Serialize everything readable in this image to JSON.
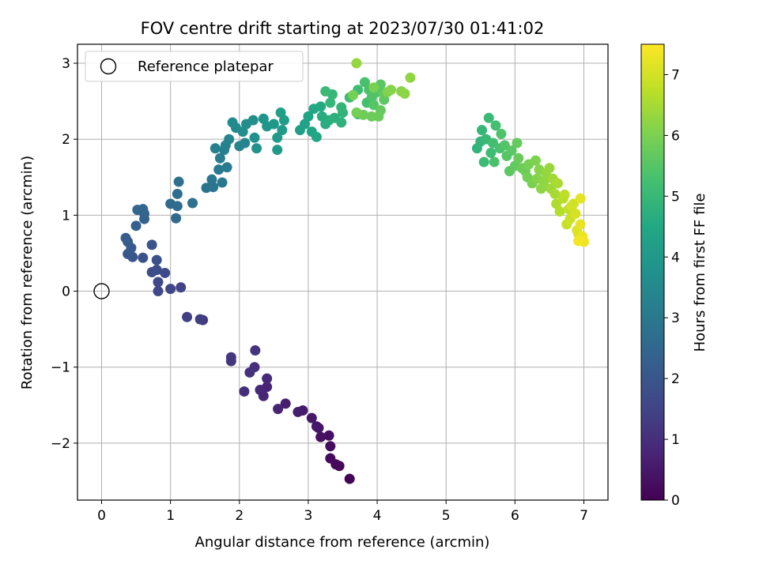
{
  "chart_data": {
    "type": "scatter",
    "title": "FOV centre drift starting at 2023/07/30 01:41:02",
    "xlabel": "Angular distance from reference (arcmin)",
    "ylabel": "Rotation from reference (arcmin)",
    "xlim": [
      -0.35,
      7.35
    ],
    "ylim": [
      -2.75,
      3.25
    ],
    "xticks": [
      0,
      1,
      2,
      3,
      4,
      5,
      6,
      7
    ],
    "yticks": [
      -2,
      -1,
      0,
      1,
      2,
      3
    ],
    "xtick_labels": [
      "0",
      "1",
      "2",
      "3",
      "4",
      "5",
      "6",
      "7"
    ],
    "ytick_labels": [
      "−2",
      "−1",
      "0",
      "1",
      "2",
      "3"
    ],
    "grid": true,
    "legend": {
      "placement": "top-left",
      "entries": [
        "Reference platepar"
      ]
    },
    "reference_point": {
      "x": 0,
      "y": 0,
      "label": "Reference platepar"
    },
    "colorbar": {
      "label": "Hours from first FF file",
      "range": [
        0,
        7.5
      ],
      "ticks": [
        0,
        1,
        2,
        3,
        4,
        5,
        6,
        7
      ],
      "tick_labels": [
        "0",
        "1",
        "2",
        "3",
        "4",
        "5",
        "6",
        "7"
      ],
      "colormap": "viridis"
    },
    "points": [
      [
        3.6,
        -2.47,
        0.05
      ],
      [
        3.45,
        -2.3,
        0.1
      ],
      [
        3.4,
        -2.28,
        0.15
      ],
      [
        3.32,
        -2.2,
        0.2
      ],
      [
        3.32,
        -2.04,
        0.25
      ],
      [
        3.3,
        -1.9,
        0.3
      ],
      [
        3.18,
        -1.92,
        0.35
      ],
      [
        3.15,
        -1.8,
        0.4
      ],
      [
        3.12,
        -1.78,
        0.45
      ],
      [
        3.05,
        -1.67,
        0.5
      ],
      [
        2.92,
        -1.57,
        0.55
      ],
      [
        2.85,
        -1.59,
        0.6
      ],
      [
        2.67,
        -1.48,
        0.65
      ],
      [
        2.56,
        -1.55,
        0.7
      ],
      [
        2.4,
        -1.26,
        0.75
      ],
      [
        2.35,
        -1.38,
        0.8
      ],
      [
        2.3,
        -1.3,
        0.85
      ],
      [
        2.4,
        -1.15,
        0.9
      ],
      [
        2.07,
        -1.32,
        0.95
      ],
      [
        2.22,
        -1.0,
        1.0
      ],
      [
        2.15,
        -1.07,
        1.05
      ],
      [
        2.23,
        -0.78,
        1.1
      ],
      [
        1.88,
        -0.92,
        1.15
      ],
      [
        1.88,
        -0.87,
        1.2
      ],
      [
        1.47,
        -0.38,
        1.3
      ],
      [
        1.43,
        -0.37,
        1.35
      ],
      [
        1.24,
        -0.34,
        1.4
      ],
      [
        1.15,
        0.05,
        1.5
      ],
      [
        1.0,
        0.03,
        1.55
      ],
      [
        0.82,
        0.0,
        1.6
      ],
      [
        0.82,
        0.12,
        1.65
      ],
      [
        0.92,
        0.24,
        1.7
      ],
      [
        0.8,
        0.28,
        1.75
      ],
      [
        0.73,
        0.25,
        1.8
      ],
      [
        0.8,
        0.41,
        1.85
      ],
      [
        0.73,
        0.61,
        1.9
      ],
      [
        0.6,
        0.44,
        1.95
      ],
      [
        0.45,
        0.45,
        2.0
      ],
      [
        0.38,
        0.49,
        2.05
      ],
      [
        0.43,
        0.57,
        2.1
      ],
      [
        0.38,
        0.65,
        2.15
      ],
      [
        0.35,
        0.7,
        2.2
      ],
      [
        0.5,
        0.86,
        2.3
      ],
      [
        0.62,
        0.95,
        2.35
      ],
      [
        0.62,
        1.02,
        2.4
      ],
      [
        0.52,
        1.07,
        2.45
      ],
      [
        0.6,
        1.08,
        2.5
      ],
      [
        1.08,
        0.96,
        2.55
      ],
      [
        1.0,
        1.15,
        2.6
      ],
      [
        1.1,
        1.12,
        2.65
      ],
      [
        1.1,
        1.28,
        2.7
      ],
      [
        1.12,
        1.44,
        2.75
      ],
      [
        1.32,
        1.16,
        2.8
      ],
      [
        1.52,
        1.36,
        2.85
      ],
      [
        1.62,
        1.37,
        2.9
      ],
      [
        1.6,
        1.47,
        2.95
      ],
      [
        1.75,
        1.43,
        3.0
      ],
      [
        1.7,
        1.6,
        3.05
      ],
      [
        1.82,
        1.63,
        3.1
      ],
      [
        1.72,
        1.75,
        3.15
      ],
      [
        1.78,
        1.86,
        3.2
      ],
      [
        1.65,
        1.88,
        3.25
      ],
      [
        1.8,
        1.92,
        3.3
      ],
      [
        1.85,
        2.0,
        3.35
      ],
      [
        2.0,
        1.91,
        3.4
      ],
      [
        2.08,
        1.95,
        3.45
      ],
      [
        1.95,
        2.15,
        3.5
      ],
      [
        1.9,
        2.22,
        3.55
      ],
      [
        2.05,
        2.1,
        3.6
      ],
      [
        2.1,
        2.2,
        3.65
      ],
      [
        2.2,
        2.25,
        3.7
      ],
      [
        2.22,
        2.02,
        3.75
      ],
      [
        2.25,
        1.88,
        3.8
      ],
      [
        2.35,
        2.27,
        3.85
      ],
      [
        2.4,
        2.17,
        3.9
      ],
      [
        2.5,
        2.2,
        3.95
      ],
      [
        2.55,
        1.86,
        4.0
      ],
      [
        2.55,
        2.02,
        4.05
      ],
      [
        2.62,
        2.12,
        4.1
      ],
      [
        2.65,
        2.25,
        4.15
      ],
      [
        2.6,
        2.35,
        4.2
      ],
      [
        2.88,
        2.12,
        4.25
      ],
      [
        2.95,
        2.2,
        4.3
      ],
      [
        3.0,
        2.3,
        4.35
      ],
      [
        3.05,
        2.1,
        4.4
      ],
      [
        3.12,
        2.03,
        4.45
      ],
      [
        3.08,
        2.4,
        4.5
      ],
      [
        3.18,
        2.43,
        4.55
      ],
      [
        3.2,
        2.3,
        4.6
      ],
      [
        3.25,
        2.2,
        4.65
      ],
      [
        3.3,
        2.25,
        4.7
      ],
      [
        3.38,
        2.28,
        4.75
      ],
      [
        3.48,
        2.22,
        4.8
      ],
      [
        3.5,
        2.35,
        4.85
      ],
      [
        3.48,
        2.42,
        4.9
      ],
      [
        3.32,
        2.48,
        4.95
      ],
      [
        3.35,
        2.59,
        5.0
      ],
      [
        3.25,
        2.63,
        5.05
      ],
      [
        3.6,
        2.55,
        5.1
      ],
      [
        3.72,
        2.65,
        5.15
      ],
      [
        3.72,
        2.33,
        5.2
      ],
      [
        3.85,
        2.48,
        5.25
      ],
      [
        3.82,
        2.75,
        5.3
      ],
      [
        3.88,
        2.65,
        5.35
      ],
      [
        3.92,
        2.55,
        5.4
      ],
      [
        4.0,
        2.62,
        5.45
      ],
      [
        3.95,
        2.45,
        5.5
      ],
      [
        4.05,
        2.72,
        5.55
      ],
      [
        4.1,
        2.52,
        5.6
      ],
      [
        4.1,
        2.6,
        5.65
      ],
      [
        4.05,
        2.38,
        5.7
      ],
      [
        4.02,
        2.3,
        5.75
      ],
      [
        3.92,
        2.3,
        5.8
      ],
      [
        3.8,
        2.32,
        5.85
      ],
      [
        3.7,
        2.35,
        5.9
      ],
      [
        3.65,
        2.58,
        5.95
      ],
      [
        3.95,
        2.68,
        6.0
      ],
      [
        4.15,
        2.62,
        6.05
      ],
      [
        4.2,
        2.65,
        6.1
      ],
      [
        4.35,
        2.63,
        6.15
      ],
      [
        4.4,
        2.6,
        6.2
      ],
      [
        4.48,
        2.81,
        6.25
      ],
      [
        3.7,
        3.0,
        6.3
      ],
      [
        5.45,
        1.88,
        4.85
      ],
      [
        5.5,
        1.97,
        4.9
      ],
      [
        5.52,
        2.12,
        4.95
      ],
      [
        5.58,
        2.0,
        5.0
      ],
      [
        5.62,
        2.28,
        5.05
      ],
      [
        5.55,
        1.7,
        5.1
      ],
      [
        5.65,
        1.82,
        5.15
      ],
      [
        5.68,
        1.95,
        5.2
      ],
      [
        5.72,
        2.18,
        5.25
      ],
      [
        5.78,
        1.88,
        5.3
      ],
      [
        5.7,
        1.7,
        5.35
      ],
      [
        5.8,
        2.07,
        5.4
      ],
      [
        5.85,
        1.92,
        5.45
      ],
      [
        5.88,
        1.78,
        5.5
      ],
      [
        5.95,
        1.85,
        5.55
      ],
      [
        5.92,
        1.58,
        5.6
      ],
      [
        6.0,
        1.65,
        5.65
      ],
      [
        6.03,
        1.95,
        5.7
      ],
      [
        6.05,
        1.75,
        5.75
      ],
      [
        6.1,
        1.62,
        5.8
      ],
      [
        6.15,
        1.58,
        5.85
      ],
      [
        6.18,
        1.5,
        5.9
      ],
      [
        6.2,
        1.67,
        5.95
      ],
      [
        6.25,
        1.42,
        6.0
      ],
      [
        6.3,
        1.72,
        6.05
      ],
      [
        6.32,
        1.48,
        6.1
      ],
      [
        6.35,
        1.6,
        6.15
      ],
      [
        6.38,
        1.35,
        6.2
      ],
      [
        6.42,
        1.44,
        6.25
      ],
      [
        6.45,
        1.55,
        6.3
      ],
      [
        6.5,
        1.62,
        6.35
      ],
      [
        6.52,
        1.35,
        6.4
      ],
      [
        6.55,
        1.48,
        6.45
      ],
      [
        6.58,
        1.28,
        6.5
      ],
      [
        6.62,
        1.42,
        6.55
      ],
      [
        6.6,
        1.15,
        6.6
      ],
      [
        6.65,
        1.05,
        6.65
      ],
      [
        6.7,
        1.22,
        6.7
      ],
      [
        6.72,
        1.27,
        6.75
      ],
      [
        6.78,
        1.08,
        6.8
      ],
      [
        6.75,
        0.88,
        6.85
      ],
      [
        6.8,
        0.95,
        6.9
      ],
      [
        6.85,
        1.15,
        6.95
      ],
      [
        6.82,
        1.12,
        7.0
      ],
      [
        6.88,
        1.02,
        7.05
      ],
      [
        6.9,
        0.8,
        7.1
      ],
      [
        6.92,
        0.75,
        7.15
      ],
      [
        6.95,
        1.22,
        7.2
      ],
      [
        6.95,
        0.88,
        7.25
      ],
      [
        6.98,
        0.72,
        7.3
      ],
      [
        7.0,
        0.65,
        7.35
      ],
      [
        6.92,
        0.66,
        7.4
      ]
    ]
  }
}
